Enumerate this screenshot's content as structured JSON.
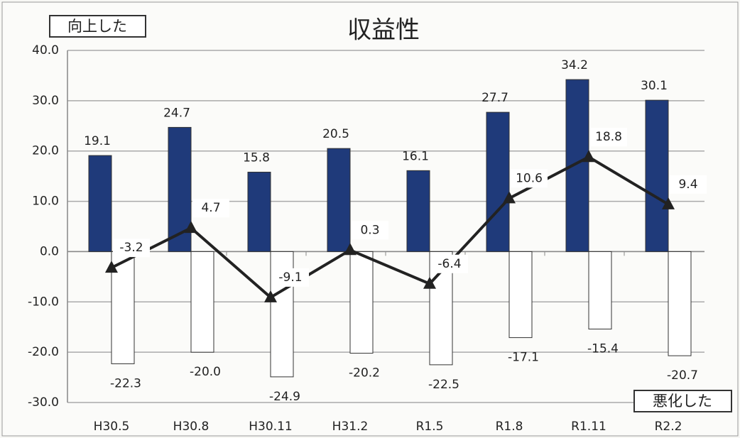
{
  "chart_data": {
    "type": "bar",
    "title": "収益性",
    "categories": [
      "H30.5",
      "H30.8",
      "H30.11",
      "H31.2",
      "R1.5",
      "R1.8",
      "R1.11",
      "R2.2"
    ],
    "series": [
      {
        "name": "向上した",
        "color": "#1f3a7a",
        "values": [
          19.1,
          24.7,
          15.8,
          20.5,
          16.1,
          27.7,
          34.2,
          30.1
        ]
      },
      {
        "name": "悪化した",
        "color": "#ffffff",
        "values": [
          -22.3,
          -20.0,
          -24.9,
          -20.2,
          -22.5,
          -17.1,
          -15.4,
          -20.7
        ],
        "value_labels": [
          "-22.3",
          "-20.0",
          "-24.9",
          "-20.2",
          "-22.5",
          "-17.1",
          "-15.4",
          "-20.7"
        ]
      },
      {
        "type": "line",
        "color": "#222222",
        "values": [
          -3.2,
          4.7,
          -9.1,
          0.3,
          -6.4,
          10.6,
          18.8,
          9.4
        ]
      }
    ],
    "ylim": [
      -30,
      40
    ],
    "yticks": [
      {
        "value": -30,
        "label": "-30.0"
      },
      {
        "value": -20,
        "label": "-20.0"
      },
      {
        "value": -10,
        "label": "-10.0"
      },
      {
        "value": 0,
        "label": "0.0"
      },
      {
        "value": 10,
        "label": "10.0"
      },
      {
        "value": 20,
        "label": "20.0"
      },
      {
        "value": 30,
        "label": "30.0"
      },
      {
        "value": 40,
        "label": "40.0"
      }
    ],
    "grid": true
  }
}
